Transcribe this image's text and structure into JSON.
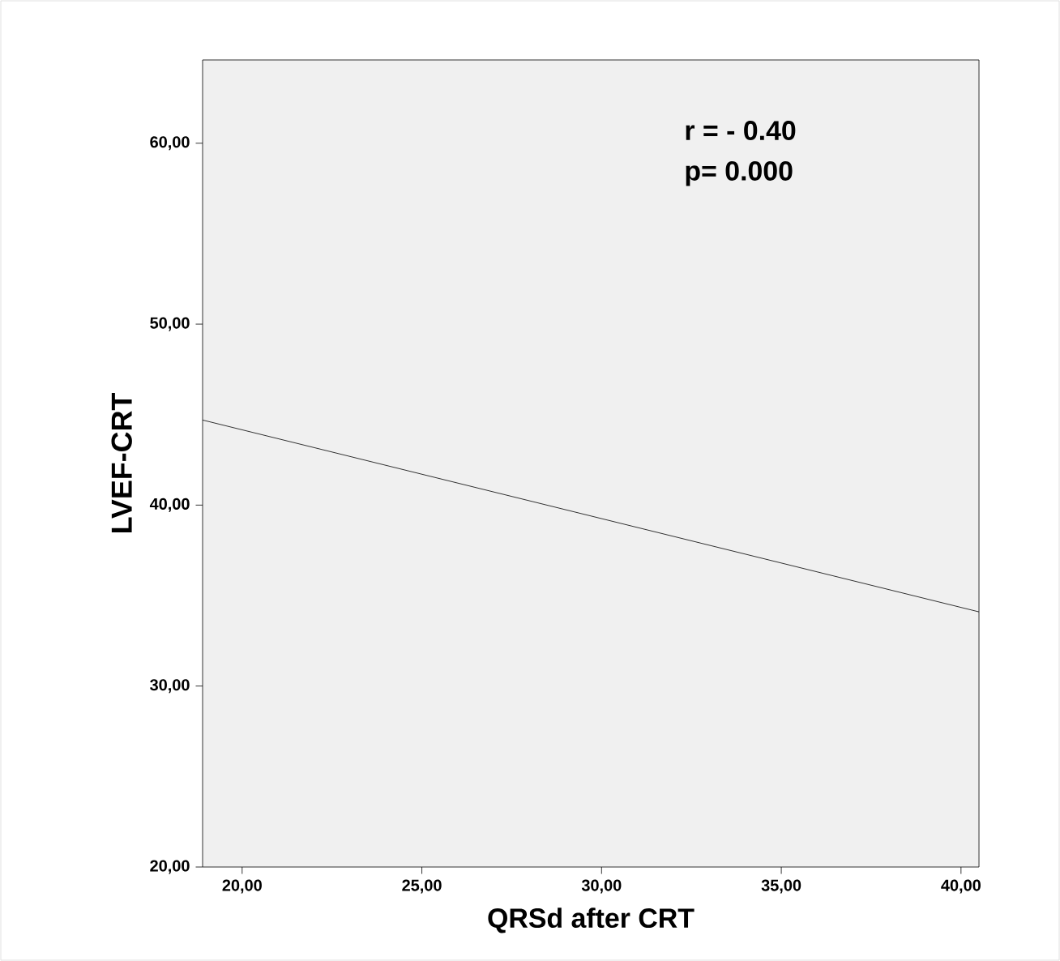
{
  "chart_data": {
    "type": "line",
    "xlabel": "QRSd after CRT",
    "ylabel": "LVEF-CRT",
    "x": [
      18.9,
      40.5
    ],
    "series": [
      {
        "color": "#000000",
        "values": [
          44.7,
          34.1
        ]
      }
    ],
    "xlim": [
      18.9,
      40.5
    ],
    "ylim": [
      20,
      64.6
    ],
    "xticks": [
      {
        "value": 20,
        "label": "20,00"
      },
      {
        "value": 25,
        "label": "25,00"
      },
      {
        "value": 30,
        "label": "30,00"
      },
      {
        "value": 35,
        "label": "35,00"
      },
      {
        "value": 40,
        "label": "40,00"
      }
    ],
    "yticks": [
      {
        "value": 20,
        "label": "20,00"
      },
      {
        "value": 30,
        "label": "30,00"
      },
      {
        "value": 40,
        "label": "40,00"
      },
      {
        "value": 50,
        "label": "50,00"
      },
      {
        "value": 60,
        "label": "60,00"
      }
    ],
    "annotations": [
      "r = - 0.40",
      "p= 0.000"
    ],
    "grid": false,
    "marker": "none",
    "line_style": "solid"
  }
}
